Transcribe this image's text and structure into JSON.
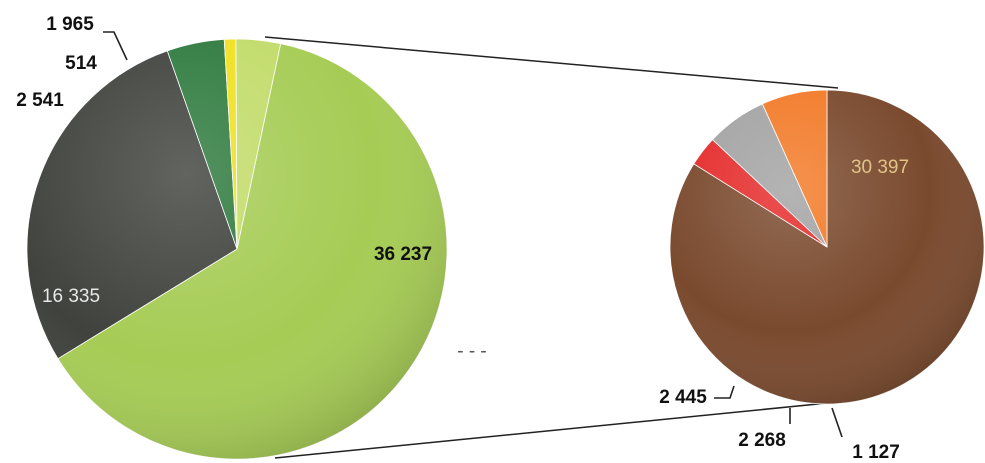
{
  "chart_data": [
    {
      "type": "pie",
      "slices": [
        {
          "value": 36237,
          "label": "36 237",
          "color": "#a6cc55"
        },
        {
          "value": 16335,
          "label": "16 335",
          "color": "#3f423d"
        },
        {
          "value": 2541,
          "label": "2 541",
          "color": "#2e7a3e"
        },
        {
          "value": 514,
          "label": "514",
          "color": "#f0e020"
        },
        {
          "value": 1965,
          "label": "1 965",
          "color": "#c2dc6a"
        }
      ]
    },
    {
      "type": "pie",
      "slices": [
        {
          "value": 30397,
          "label": "30 397",
          "color": "#7a4a2e"
        },
        {
          "value": 1127,
          "label": "1 127",
          "color": "#e52b2b"
        },
        {
          "value": 2268,
          "label": "2 268",
          "color": "#a3a3a3"
        },
        {
          "value": 2445,
          "label": "2 445",
          "color": "#f27a28"
        }
      ]
    }
  ],
  "ellipsis": "- - -"
}
